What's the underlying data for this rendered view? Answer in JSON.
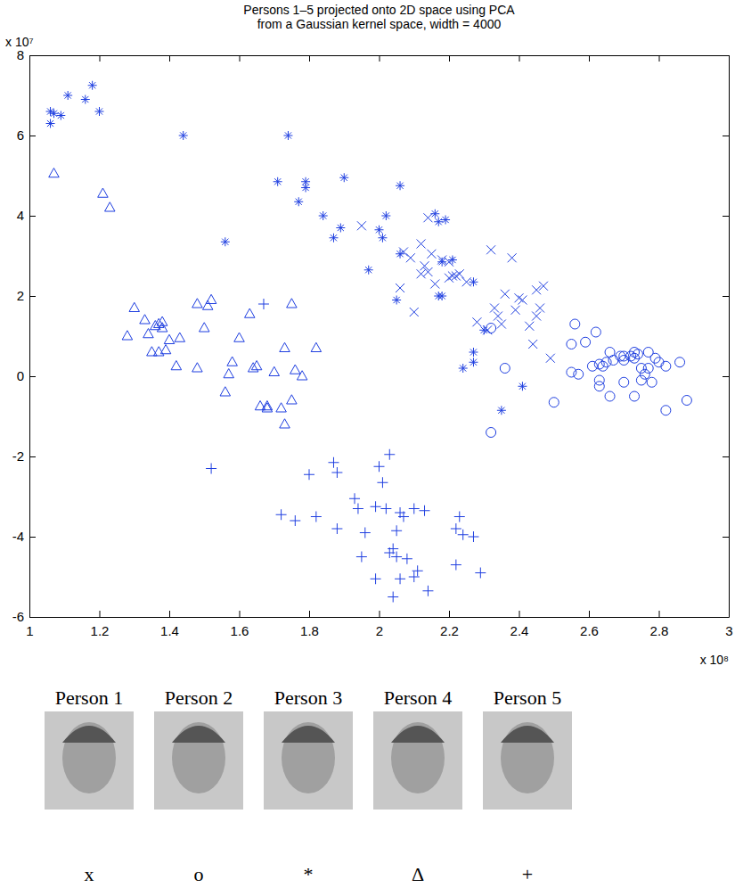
{
  "chart_data": {
    "type": "scatter",
    "title": [
      "Persons 1–5 projected onto 2D space using PCA",
      "from a Gaussian kernel space, width = 4000"
    ],
    "x_scale_label": "x 10⁸",
    "y_scale_label": "x 10⁷",
    "color": "#1f3fe0",
    "xlim": [
      1,
      3
    ],
    "xticks": [
      1,
      1.2,
      1.4,
      1.6,
      1.8,
      2,
      2.2,
      2.4,
      2.6,
      2.8,
      3
    ],
    "ylim": [
      -6,
      8
    ],
    "yticks": [
      -6,
      -4,
      -2,
      0,
      2,
      4,
      6,
      8
    ],
    "series": [
      {
        "name": "Person 1",
        "marker": "cross",
        "marker_label": "x",
        "x": [
          1.95,
          2.06,
          2.07,
          2.1,
          2.13,
          2.12,
          2.15,
          2.14,
          2.16,
          2.18,
          2.2,
          2.21,
          2.22,
          2.23,
          2.25,
          2.28,
          2.32,
          2.33,
          2.34,
          2.35,
          2.36,
          2.38,
          2.39,
          2.4,
          2.41,
          2.43,
          2.44,
          2.45,
          2.45,
          2.46,
          2.47,
          2.49,
          2.12,
          2.2,
          2.14,
          2.31,
          2.09
        ],
        "values": [
          3.75,
          2.2,
          3.1,
          1.6,
          2.75,
          2.55,
          3.05,
          3.95,
          2.3,
          2.9,
          2.45,
          2.5,
          2.5,
          2.55,
          2.35,
          1.35,
          3.15,
          1.7,
          1.5,
          1.3,
          2.05,
          2.95,
          1.65,
          1.95,
          1.9,
          1.25,
          0.8,
          1.5,
          2.15,
          1.7,
          2.25,
          0.45,
          3.3,
          2.85,
          2.6,
          1.15,
          2.95
        ]
      },
      {
        "name": "Person 2",
        "marker": "circle",
        "marker_label": "o",
        "x": [
          2.32,
          2.32,
          2.36,
          2.5,
          2.55,
          2.55,
          2.56,
          2.57,
          2.59,
          2.61,
          2.62,
          2.63,
          2.63,
          2.64,
          2.63,
          2.65,
          2.66,
          2.66,
          2.67,
          2.69,
          2.7,
          2.7,
          2.72,
          2.73,
          2.73,
          2.73,
          2.74,
          2.75,
          2.75,
          2.76,
          2.77,
          2.77,
          2.78,
          2.79,
          2.8,
          2.82,
          2.82,
          2.86,
          2.88,
          2.7
        ],
        "values": [
          1.2,
          -1.4,
          0.2,
          -0.65,
          0.1,
          0.8,
          1.3,
          0.05,
          0.85,
          0.25,
          1.1,
          0.3,
          -0.1,
          0.25,
          -0.25,
          0.35,
          0.6,
          -0.5,
          0.4,
          0.5,
          0.4,
          -0.15,
          0.5,
          0.6,
          0.45,
          -0.5,
          0.55,
          0.2,
          -0.1,
          0.05,
          0.6,
          0.2,
          -0.15,
          0.45,
          0.35,
          0.25,
          -0.85,
          0.35,
          -0.6,
          0.5
        ]
      },
      {
        "name": "Person 3",
        "marker": "star",
        "marker_label": "*",
        "x": [
          1.06,
          1.06,
          1.07,
          1.09,
          1.11,
          1.16,
          1.18,
          1.2,
          1.44,
          1.74,
          1.56,
          1.71,
          1.77,
          1.79,
          1.79,
          1.84,
          1.87,
          1.89,
          1.9,
          1.97,
          2.0,
          2.01,
          2.02,
          2.06,
          2.05,
          2.16,
          2.17,
          2.18,
          2.19,
          2.17,
          2.24,
          2.27,
          2.27,
          2.3,
          2.35,
          2.41,
          2.06,
          2.27,
          2.21,
          2.18
        ],
        "values": [
          6.6,
          6.3,
          6.55,
          6.5,
          7.0,
          6.9,
          7.25,
          6.6,
          6.0,
          6.0,
          3.35,
          4.85,
          4.35,
          4.7,
          4.85,
          4.0,
          3.45,
          3.7,
          4.95,
          2.65,
          3.65,
          3.45,
          4.0,
          4.75,
          1.9,
          4.05,
          3.85,
          2.85,
          3.9,
          2.0,
          0.2,
          0.6,
          0.35,
          1.15,
          -0.85,
          -0.25,
          3.05,
          2.35,
          2.9,
          2.0
        ]
      },
      {
        "name": "Person 4",
        "marker": "triangle",
        "marker_label": "Δ",
        "x": [
          1.07,
          1.21,
          1.23,
          1.3,
          1.28,
          1.33,
          1.34,
          1.35,
          1.36,
          1.37,
          1.38,
          1.37,
          1.39,
          1.38,
          1.4,
          1.42,
          1.43,
          1.48,
          1.48,
          1.5,
          1.51,
          1.52,
          1.56,
          1.57,
          1.58,
          1.6,
          1.63,
          1.64,
          1.65,
          1.66,
          1.68,
          1.68,
          1.7,
          1.72,
          1.73,
          1.73,
          1.75,
          1.75,
          1.76,
          1.78,
          1.82
        ],
        "values": [
          5.05,
          4.55,
          4.2,
          1.7,
          1.0,
          1.4,
          1.05,
          0.6,
          1.25,
          1.3,
          1.35,
          0.6,
          0.65,
          1.2,
          0.9,
          0.25,
          0.95,
          0.2,
          1.8,
          1.2,
          1.75,
          1.9,
          -0.4,
          0.05,
          0.35,
          0.95,
          1.55,
          0.2,
          0.25,
          -0.75,
          -0.8,
          -0.75,
          0.1,
          -0.8,
          -1.2,
          0.7,
          1.8,
          -0.6,
          0.15,
          0.0,
          0.7
        ]
      },
      {
        "name": "Person 5",
        "marker": "plus",
        "marker_label": "+",
        "x": [
          2.03,
          2.0,
          1.87,
          1.88,
          1.8,
          2.01,
          1.99,
          1.93,
          1.94,
          2.02,
          2.06,
          2.1,
          2.13,
          1.72,
          1.76,
          1.82,
          1.96,
          2.07,
          2.05,
          1.88,
          2.23,
          2.22,
          2.24,
          2.27,
          1.95,
          2.04,
          2.05,
          2.08,
          2.22,
          2.11,
          2.1,
          2.29,
          1.99,
          2.06,
          2.14,
          2.04,
          2.03,
          1.67,
          1.52
        ],
        "values": [
          -1.95,
          -2.25,
          -2.15,
          -2.4,
          -2.45,
          -2.65,
          -3.25,
          -3.05,
          -3.3,
          -3.3,
          -3.4,
          -3.3,
          -3.35,
          -3.45,
          -3.6,
          -3.5,
          -3.9,
          -3.5,
          -3.85,
          -3.8,
          -3.5,
          -3.8,
          -3.95,
          -4.0,
          -4.5,
          -4.3,
          -4.5,
          -4.55,
          -4.7,
          -4.85,
          -5.0,
          -4.9,
          -5.05,
          -5.05,
          -5.35,
          -5.5,
          -4.4,
          1.8,
          -2.3
        ]
      }
    ]
  }
}
